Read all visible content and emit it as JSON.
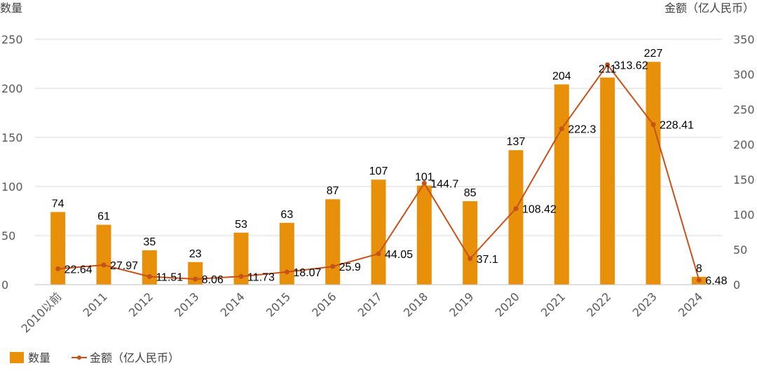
{
  "chart_data": {
    "type": "bar",
    "categories": [
      "2010以前",
      "2011",
      "2012",
      "2013",
      "2014",
      "2015",
      "2016",
      "2017",
      "2018",
      "2019",
      "2020",
      "2021",
      "2022",
      "2023",
      "2024"
    ],
    "series": [
      {
        "name": "数量",
        "type": "bar",
        "axis": "left",
        "color": "#E8900A",
        "values": [
          74,
          61,
          35,
          23,
          53,
          63,
          87,
          107,
          101,
          85,
          137,
          204,
          211,
          227,
          8
        ]
      },
      {
        "name": "金额（亿人民币）",
        "type": "line",
        "axis": "right",
        "color": "#C5521A",
        "values": [
          22.64,
          27.97,
          11.51,
          8.06,
          11.73,
          18.07,
          25.9,
          44.05,
          144.7,
          37.1,
          108.42,
          222.3,
          313.62,
          228.41,
          6.48
        ]
      }
    ],
    "ylabel": "数量",
    "y2label": "金额（亿人民币）",
    "ylim": [
      0,
      250
    ],
    "y2lim": [
      0,
      350
    ],
    "yticks": [
      0,
      50,
      100,
      150,
      200,
      250
    ],
    "y2ticks": [
      0,
      50,
      100,
      150,
      200,
      250,
      300,
      350
    ],
    "grid": true,
    "legend": "bottom-left"
  }
}
